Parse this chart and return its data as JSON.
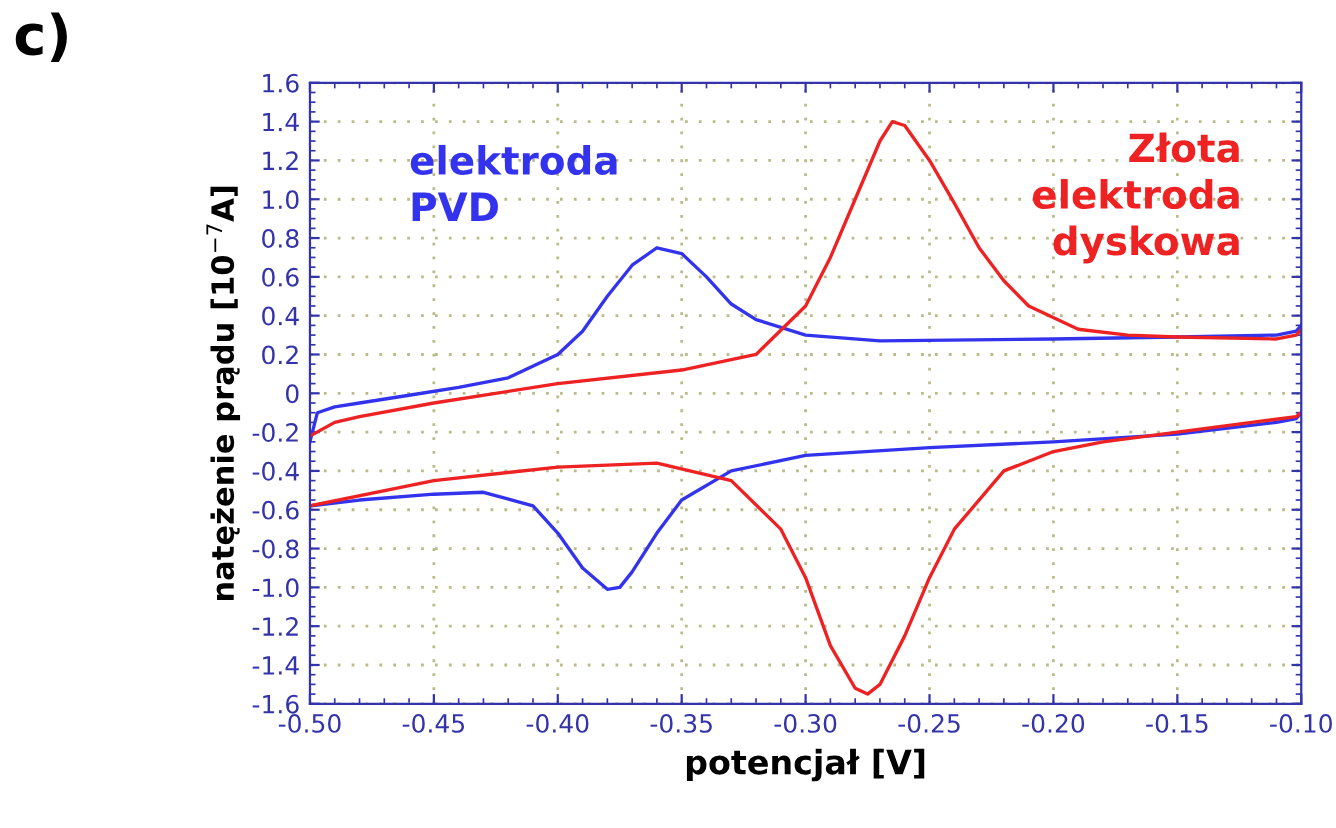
{
  "chart_data": {
    "type": "line",
    "title": "c)",
    "xlabel": "potencjał [V]",
    "ylabel": "natężenie prądu [10$^{−7}$A]",
    "series": [
      {
        "name": "elektroda\nPVD",
        "color": "#3333ee",
        "x": [
          -0.5,
          -0.497,
          -0.49,
          -0.48,
          -0.46,
          -0.44,
          -0.42,
          -0.4,
          -0.39,
          -0.38,
          -0.37,
          -0.36,
          -0.35,
          -0.34,
          -0.33,
          -0.32,
          -0.3,
          -0.27,
          -0.2,
          -0.15,
          -0.11,
          -0.102,
          -0.1
        ],
        "values": [
          -0.25,
          -0.1,
          -0.07,
          -0.05,
          -0.01,
          0.03,
          0.08,
          0.2,
          0.32,
          0.5,
          0.66,
          0.75,
          0.72,
          0.6,
          0.46,
          0.38,
          0.3,
          0.27,
          0.28,
          0.29,
          0.3,
          0.32,
          0.35
        ]
      },
      {
        "color": "#3333ee",
        "x": [
          -0.1,
          -0.102,
          -0.11,
          -0.15,
          -0.2,
          -0.25,
          -0.3,
          -0.33,
          -0.35,
          -0.36,
          -0.37,
          -0.375,
          -0.38,
          -0.39,
          -0.4,
          -0.41,
          -0.43,
          -0.45,
          -0.48,
          -0.5
        ],
        "values": [
          -0.1,
          -0.13,
          -0.15,
          -0.21,
          -0.25,
          -0.28,
          -0.32,
          -0.4,
          -0.55,
          -0.72,
          -0.92,
          -1.0,
          -1.01,
          -0.9,
          -0.72,
          -0.58,
          -0.51,
          -0.52,
          -0.55,
          -0.58
        ]
      },
      {
        "name": "Złota\nelektroda\ndyskowa",
        "color": "#ee2222",
        "x": [
          -0.5,
          -0.49,
          -0.48,
          -0.45,
          -0.4,
          -0.35,
          -0.32,
          -0.3,
          -0.29,
          -0.28,
          -0.27,
          -0.265,
          -0.26,
          -0.25,
          -0.24,
          -0.23,
          -0.22,
          -0.21,
          -0.19,
          -0.17,
          -0.15,
          -0.11,
          -0.102,
          -0.1
        ],
        "values": [
          -0.22,
          -0.15,
          -0.12,
          -0.05,
          0.05,
          0.12,
          0.2,
          0.45,
          0.7,
          1.0,
          1.3,
          1.4,
          1.38,
          1.2,
          0.98,
          0.75,
          0.58,
          0.45,
          0.33,
          0.3,
          0.29,
          0.28,
          0.3,
          0.33
        ]
      },
      {
        "color": "#ee2222",
        "x": [
          -0.1,
          -0.102,
          -0.12,
          -0.15,
          -0.18,
          -0.2,
          -0.22,
          -0.24,
          -0.25,
          -0.26,
          -0.27,
          -0.275,
          -0.28,
          -0.29,
          -0.3,
          -0.31,
          -0.33,
          -0.36,
          -0.4,
          -0.45,
          -0.5
        ],
        "values": [
          -0.1,
          -0.12,
          -0.15,
          -0.2,
          -0.25,
          -0.3,
          -0.4,
          -0.7,
          -0.95,
          -1.25,
          -1.5,
          -1.55,
          -1.52,
          -1.3,
          -0.95,
          -0.7,
          -0.45,
          -0.36,
          -0.38,
          -0.45,
          -0.58
        ]
      }
    ],
    "xlim": [
      -0.5,
      -0.1
    ],
    "xticks": [
      {
        "value": -0.5,
        "label": "-0.50"
      },
      {
        "value": -0.45,
        "label": "-0.45"
      },
      {
        "value": -0.4,
        "label": "-0.40"
      },
      {
        "value": -0.35,
        "label": "-0.35"
      },
      {
        "value": -0.3,
        "label": "-0.30"
      },
      {
        "value": -0.25,
        "label": "-0.25"
      },
      {
        "value": -0.2,
        "label": "-0.20"
      },
      {
        "value": -0.15,
        "label": "-0.15"
      },
      {
        "value": -0.1,
        "label": "-0.10"
      }
    ],
    "ylim": [
      -1.6,
      1.6
    ],
    "yticks": [
      -1.6,
      -1.4,
      -1.2,
      {
        "value": -1.0,
        "label": "-1.0"
      },
      -0.8,
      -0.6,
      -0.4,
      -0.2,
      0,
      0.2,
      0.4,
      0.6,
      0.8,
      {
        "value": 1.0,
        "label": "1.0"
      },
      1.2,
      1.4,
      1.6
    ],
    "grid": true,
    "marker": "none",
    "line_style": "solid"
  }
}
